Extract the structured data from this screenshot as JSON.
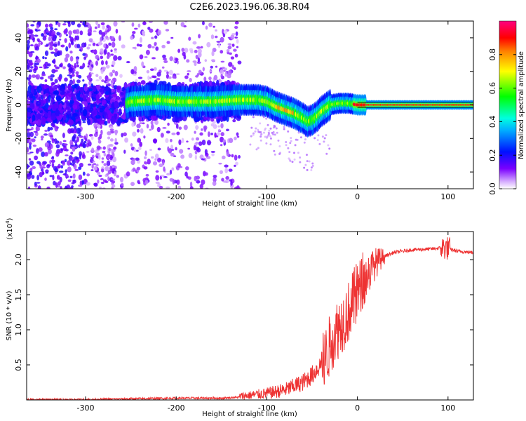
{
  "title": "C2E6.2023.196.06.38.R04",
  "chart_data": [
    {
      "type": "heatmap",
      "xlabel": "Height of straight line (km)",
      "ylabel": "Frequency (Hz)",
      "xlim": [
        -365,
        128
      ],
      "ylim": [
        -50,
        50
      ],
      "xticks": [
        -300,
        -200,
        -100,
        0,
        100
      ],
      "yticks": [
        -40,
        -20,
        0,
        20,
        40
      ],
      "colorbar": {
        "label": "Normalized spectral amplitude",
        "range": [
          0.0,
          1.0
        ],
        "ticks": [
          0.0,
          0.2,
          0.4,
          0.6,
          0.8
        ],
        "colormap": "rainbow (violet-blue-cyan-green-yellow-red-magenta)",
        "colors": [
          "#ffffff",
          "#b066ff",
          "#6200ff",
          "#0010ff",
          "#00ffff",
          "#00ff00",
          "#ffff00",
          "#ff0000",
          "#ff0080"
        ]
      },
      "ridge": {
        "x": [
          -365,
          -340,
          -300,
          -260,
          -250,
          -220,
          -200,
          -160,
          -130,
          -110,
          -100,
          -90,
          -80,
          -70,
          -60,
          -55,
          -50,
          -45,
          -40,
          -35,
          -30,
          -20,
          -10,
          0,
          50,
          100,
          128
        ],
        "y": [
          0,
          0,
          0,
          0,
          2,
          3,
          2,
          2,
          3,
          3,
          2,
          -1,
          -3,
          -5,
          -8,
          -10,
          -9,
          -7,
          -4,
          -2,
          0,
          1,
          1,
          0,
          0,
          0,
          0
        ],
        "peak_amplitude": 0.95
      }
    },
    {
      "type": "line",
      "xlabel": "Height of straight line (km)",
      "ylabel": "SNR (10 * v/v)",
      "y_multiplier": "(x10^4)",
      "xlim": [
        -365,
        128
      ],
      "ylim": [
        0,
        2.4
      ],
      "xticks": [
        -300,
        -200,
        -100,
        0,
        100
      ],
      "yticks": [
        0.5,
        1.0,
        1.5,
        2.0
      ],
      "line_color": "#ee3333",
      "series": [
        {
          "x": [
            -365,
            -300,
            -250,
            -200,
            -150,
            -120,
            -100,
            -80,
            -60,
            -50,
            -40,
            -35,
            -30,
            -25,
            -20,
            -15,
            -10,
            -5,
            0,
            10,
            20,
            30,
            40,
            60,
            80,
            95,
            100,
            110,
            128
          ],
          "y": [
            0.0,
            0.0,
            0.01,
            0.02,
            0.02,
            0.04,
            0.06,
            0.1,
            0.2,
            0.3,
            0.45,
            0.6,
            0.8,
            0.95,
            1.05,
            1.15,
            1.25,
            1.4,
            1.55,
            1.75,
            1.95,
            2.05,
            2.1,
            2.14,
            2.15,
            2.17,
            2.16,
            2.12,
            2.1
          ]
        }
      ]
    }
  ]
}
